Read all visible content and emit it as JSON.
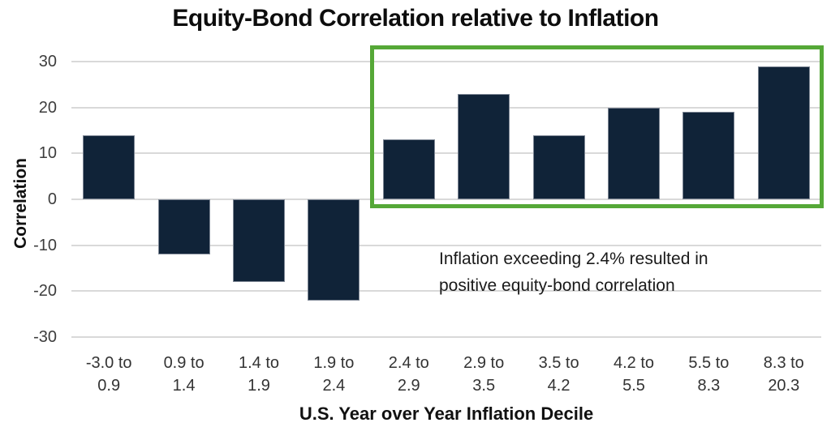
{
  "chart_data": {
    "type": "bar",
    "title": "Equity-Bond Correlation relative to Inflation",
    "xlabel": "U.S. Year over Year Inflation Decile",
    "ylabel": "Correlation",
    "categories": [
      "-3.0 to\n0.9",
      "0.9 to\n1.4",
      "1.4 to\n1.9",
      "1.9 to\n2.4",
      "2.4 to\n2.9",
      "2.9 to\n3.5",
      "3.5 to\n4.2",
      "4.2 to\n5.5",
      "5.5 to\n8.3",
      "8.3 to\n20.3"
    ],
    "values": [
      14,
      -12,
      -18,
      -22,
      13,
      23,
      14,
      20,
      19,
      29
    ],
    "ylim": [
      -30,
      30
    ],
    "yticks": [
      30,
      20,
      10,
      0,
      -10,
      -20,
      -30
    ],
    "grid": "horizontal",
    "legend": "none",
    "bar_color": "#102338",
    "bar_outline_color": "#7d8694",
    "gridline_color": "#d9d9d9",
    "annotation": "Inflation exceeding 2.4% resulted in positive equity-bond correlation",
    "highlight_box": {
      "meaning": "deciles with positive correlation (inflation above 2.4%)",
      "start_index": 4,
      "end_index": 9,
      "start_category": "2.4 to 2.9",
      "end_category": "8.3 to 20.3",
      "color": "#55a837"
    }
  }
}
